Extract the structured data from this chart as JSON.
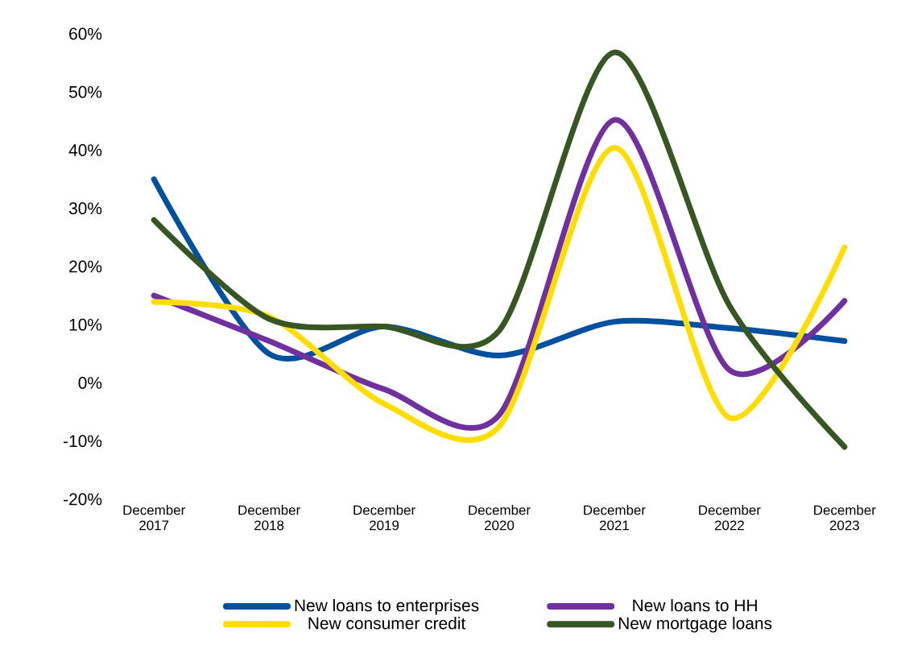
{
  "chart_data": {
    "type": "line",
    "categories": [
      "December 2017",
      "December 2018",
      "December 2019",
      "December 2020",
      "December 2021",
      "December 2022",
      "December 2023"
    ],
    "series": [
      {
        "name": "New loans to enterprises",
        "color": "#0050a0",
        "values": [
          35,
          5,
          9.7,
          4.7,
          10.5,
          9.4,
          7.2
        ]
      },
      {
        "name": "New loans to HH",
        "color": "#7030a0",
        "values": [
          15,
          7.2,
          -1.1,
          -5.5,
          45.2,
          2.2,
          14.1
        ]
      },
      {
        "name": "New consumer credit",
        "color": "#ffdd00",
        "values": [
          13.9,
          11.4,
          -3.6,
          -7.5,
          40.4,
          -6,
          23.3
        ]
      },
      {
        "name": "New mortgage loans",
        "color": "#375623",
        "values": [
          28,
          11,
          9.7,
          9,
          56.8,
          13.3,
          -11
        ]
      }
    ],
    "ylim": [
      -20,
      60
    ],
    "yticks": [
      {
        "value": -20,
        "label": "-20%"
      },
      {
        "value": -10,
        "label": "-10%"
      },
      {
        "value": 0,
        "label": "0%"
      },
      {
        "value": 10,
        "label": "10%"
      },
      {
        "value": 20,
        "label": "20%"
      },
      {
        "value": 30,
        "label": "30%"
      },
      {
        "value": 40,
        "label": "40%"
      },
      {
        "value": 50,
        "label": "50%"
      },
      {
        "value": 60,
        "label": "60%"
      }
    ],
    "legend": "bottom",
    "grid": false,
    "marker": "none",
    "line_style": "solid"
  }
}
